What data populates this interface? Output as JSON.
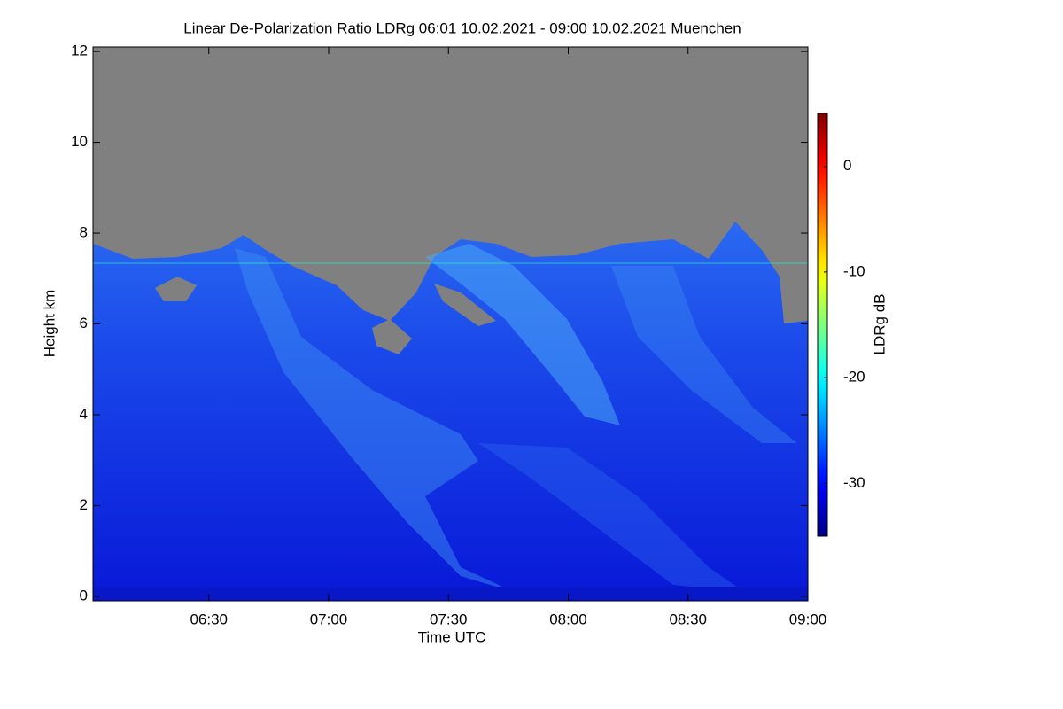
{
  "chart_data": {
    "type": "heatmap",
    "title": "Linear De-Polarization Ratio LDRg   06:01 10.02.2021 - 09:00 10.02.2021 Muenchen",
    "xlabel": "Time UTC",
    "ylabel": "Height km",
    "xlim": [
      "06:01",
      "09:00"
    ],
    "xticks": [
      "06:30",
      "07:00",
      "07:30",
      "08:00",
      "08:30",
      "09:00"
    ],
    "ylim": [
      -0.1,
      12.1
    ],
    "yticks": [
      0,
      2,
      4,
      6,
      8,
      10,
      12
    ],
    "colorbar": {
      "label": "LDRg dB",
      "lim": [
        -35,
        5
      ],
      "ticks": [
        0,
        -10,
        -20,
        -30
      ],
      "colormap": "jet"
    }
  }
}
